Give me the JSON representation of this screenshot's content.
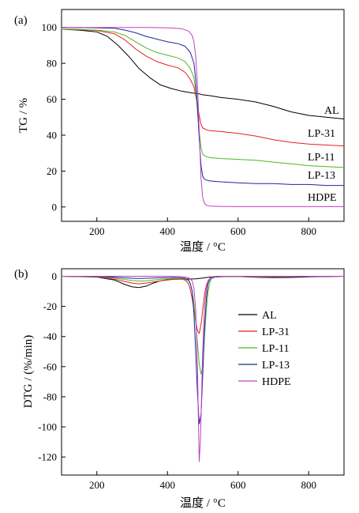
{
  "chart_data": [
    {
      "panel": "(a)",
      "type": "line",
      "xlabel": "温度 / °C",
      "ylabel": "TG / %",
      "xlim": [
        100,
        900
      ],
      "ylim": [
        -8,
        110
      ],
      "xticks": [
        200,
        400,
        600,
        800
      ],
      "yticks": [
        0,
        20,
        40,
        60,
        80,
        100
      ],
      "grid": false,
      "legend": "inline labels at right",
      "series": [
        {
          "name": "AL",
          "color": "#000000",
          "x": [
            100,
            150,
            200,
            230,
            260,
            290,
            320,
            350,
            380,
            410,
            440,
            470,
            490,
            500,
            520,
            550,
            600,
            650,
            700,
            750,
            800,
            850,
            900
          ],
          "y": [
            99,
            98.5,
            97.5,
            95,
            90,
            84,
            77,
            72,
            68,
            66,
            64.5,
            63.5,
            63,
            62.5,
            62,
            61,
            60,
            58.5,
            56,
            53,
            51,
            50,
            49
          ]
        },
        {
          "name": "LP-31",
          "color": "#e8201e",
          "x": [
            100,
            150,
            200,
            250,
            280,
            310,
            340,
            370,
            400,
            430,
            450,
            465,
            475,
            480,
            485,
            490,
            495,
            500,
            505,
            510,
            520,
            550,
            600,
            650,
            700,
            750,
            800,
            850,
            900
          ],
          "y": [
            99,
            98.8,
            98.3,
            96.5,
            93,
            88,
            84,
            81,
            79,
            77.5,
            75,
            71,
            67,
            62,
            57,
            51,
            46,
            44,
            43.5,
            43,
            42.5,
            42,
            41,
            39.5,
            37.5,
            36,
            35,
            34.5,
            34
          ]
        },
        {
          "name": "LP-11",
          "color": "#50b820",
          "x": [
            100,
            150,
            200,
            250,
            280,
            310,
            340,
            370,
            400,
            430,
            450,
            465,
            475,
            480,
            485,
            490,
            495,
            500,
            505,
            510,
            520,
            550,
            600,
            650,
            700,
            750,
            800,
            850,
            900
          ],
          "y": [
            99,
            98.9,
            98.5,
            97.5,
            95.5,
            92,
            88.5,
            86,
            84.5,
            83,
            81,
            77,
            72,
            65,
            54,
            42,
            33,
            29.5,
            28.5,
            28,
            27.5,
            27,
            26.5,
            26,
            25,
            24,
            23,
            22.5,
            22
          ]
        },
        {
          "name": "LP-13",
          "color": "#1e2896",
          "x": [
            100,
            150,
            200,
            250,
            280,
            310,
            340,
            370,
            400,
            430,
            450,
            465,
            475,
            480,
            485,
            490,
            495,
            500,
            505,
            510,
            520,
            550,
            600,
            650,
            700,
            750,
            800,
            850,
            900
          ],
          "y": [
            100,
            99.9,
            99.8,
            99.5,
            98.5,
            97,
            95,
            93.5,
            92,
            91,
            89.5,
            86,
            80,
            71,
            55,
            38,
            23,
            17,
            15.5,
            15,
            14.5,
            14,
            13.5,
            13,
            13,
            12.5,
            12.5,
            12,
            12
          ]
        },
        {
          "name": "HDPE",
          "color": "#c040c0",
          "x": [
            100,
            200,
            300,
            350,
            400,
            440,
            460,
            470,
            475,
            480,
            485,
            490,
            495,
            500,
            505,
            510,
            520,
            550,
            600,
            700,
            800,
            900
          ],
          "y": [
            100,
            100,
            100,
            100,
            99.8,
            99.3,
            98,
            95.5,
            92,
            84,
            68,
            42,
            16,
            5,
            2,
            1,
            0.5,
            0.3,
            0.2,
            0.2,
            0.2,
            0.2
          ]
        }
      ]
    },
    {
      "panel": "(b)",
      "type": "line",
      "xlabel": "温度 / °C",
      "ylabel": "DTG / (%/min)",
      "xlim": [
        100,
        900
      ],
      "ylim": [
        -132,
        5
      ],
      "xticks": [
        200,
        400,
        600,
        800
      ],
      "yticks": [
        0,
        -20,
        -40,
        -60,
        -80,
        -100,
        -120
      ],
      "grid": false,
      "legend": "center-right",
      "series": [
        {
          "name": "AL",
          "color": "#000000",
          "x": [
            100,
            200,
            250,
            280,
            300,
            320,
            340,
            360,
            380,
            400,
            420,
            440,
            460,
            480,
            500,
            520,
            560,
            600,
            650,
            700,
            750,
            800,
            850,
            900
          ],
          "y": [
            0,
            -0.5,
            -2.5,
            -5.5,
            -7,
            -7.5,
            -6.5,
            -4.5,
            -3,
            -2.3,
            -2,
            -1.8,
            -1.8,
            -1.7,
            -1.2,
            -0.5,
            -0.1,
            -0.2,
            -0.6,
            -1,
            -0.8,
            -0.4,
            -0.2,
            0
          ]
        },
        {
          "name": "LP-31",
          "color": "#e8201e",
          "x": [
            100,
            200,
            250,
            300,
            320,
            340,
            380,
            420,
            440,
            450,
            460,
            465,
            470,
            475,
            480,
            485,
            490,
            495,
            500,
            505,
            510,
            515,
            520,
            530,
            560,
            600,
            700,
            750,
            800,
            900
          ],
          "y": [
            0,
            -0.3,
            -2,
            -4.5,
            -5,
            -4.5,
            -3,
            -2,
            -2,
            -2.5,
            -5,
            -9,
            -15,
            -22,
            -30,
            -36,
            -38,
            -32,
            -22,
            -12,
            -6,
            -3,
            -1.5,
            -0.5,
            -0.2,
            -0.2,
            -0.8,
            -0.5,
            -0.2,
            0
          ]
        },
        {
          "name": "LP-11",
          "color": "#50b820",
          "x": [
            100,
            200,
            250,
            300,
            320,
            340,
            380,
            420,
            440,
            450,
            460,
            465,
            470,
            475,
            480,
            485,
            490,
            495,
            500,
            505,
            510,
            515,
            520,
            525,
            535,
            560,
            600,
            700,
            750,
            800,
            900
          ],
          "y": [
            0,
            -0.2,
            -1.2,
            -2.8,
            -3.2,
            -3,
            -2,
            -1.5,
            -1.5,
            -2,
            -3,
            -5,
            -10,
            -18,
            -30,
            -45,
            -58,
            -65,
            -60,
            -40,
            -22,
            -10,
            -4,
            -1.5,
            -0.5,
            -0.2,
            -0.1,
            -0.6,
            -0.4,
            -0.1,
            0
          ]
        },
        {
          "name": "LP-13",
          "color": "#1e2896",
          "x": [
            100,
            200,
            250,
            300,
            320,
            340,
            380,
            420,
            440,
            450,
            460,
            465,
            470,
            475,
            480,
            485,
            490,
            495,
            500,
            505,
            510,
            515,
            520,
            525,
            535,
            560,
            600,
            700,
            900
          ],
          "y": [
            0,
            -0.1,
            -0.6,
            -1.3,
            -1.5,
            -1.3,
            -1,
            -0.8,
            -1,
            -1.3,
            -2.5,
            -5,
            -10,
            -25,
            -50,
            -78,
            -98,
            -92,
            -65,
            -35,
            -15,
            -5,
            -2,
            -0.8,
            -0.3,
            -0.1,
            0,
            -0.3,
            0
          ]
        },
        {
          "name": "HDPE",
          "color": "#c040c0",
          "x": [
            100,
            400,
            440,
            460,
            470,
            475,
            480,
            485,
            488,
            490,
            493,
            496,
            500,
            505,
            510,
            515,
            520,
            525,
            530,
            540,
            560,
            600,
            900
          ],
          "y": [
            0,
            0,
            -0.2,
            -1,
            -3,
            -8,
            -22,
            -60,
            -100,
            -123,
            -110,
            -85,
            -48,
            -20,
            -8,
            -3,
            -1.5,
            -0.5,
            -0.2,
            0,
            0,
            0,
            0
          ]
        }
      ]
    }
  ]
}
